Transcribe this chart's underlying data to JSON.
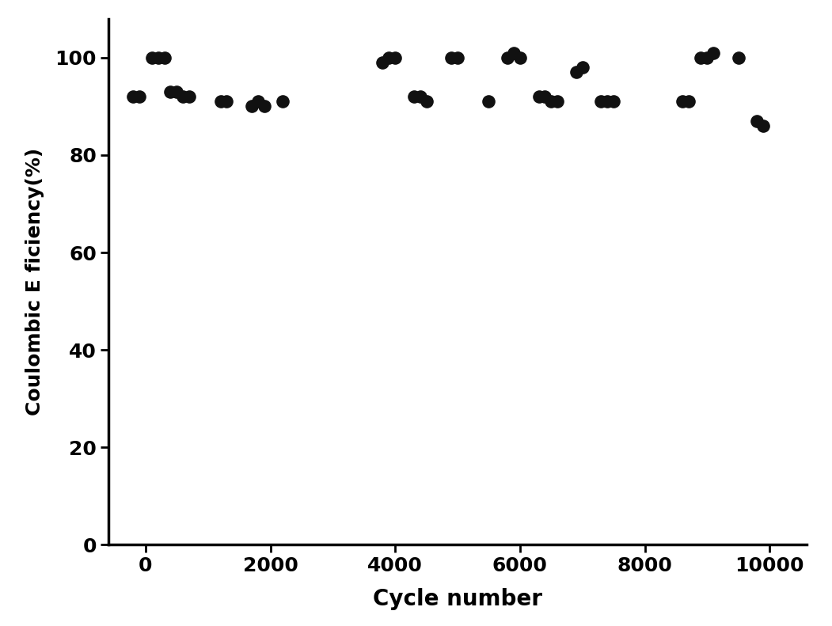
{
  "x": [
    -200,
    -100,
    100,
    200,
    300,
    400,
    500,
    600,
    700,
    1200,
    1300,
    1700,
    1800,
    1900,
    2200,
    3800,
    3900,
    4000,
    4300,
    4400,
    4500,
    4900,
    5000,
    5500,
    5800,
    5900,
    6000,
    6300,
    6400,
    6500,
    6600,
    6900,
    7000,
    7300,
    7400,
    7500,
    8600,
    8700,
    8900,
    9000,
    9100,
    9500,
    9800,
    9900
  ],
  "y": [
    92,
    92,
    100,
    100,
    100,
    93,
    93,
    92,
    92,
    91,
    91,
    90,
    91,
    90,
    91,
    99,
    100,
    100,
    92,
    92,
    91,
    100,
    100,
    91,
    100,
    101,
    100,
    92,
    92,
    91,
    91,
    97,
    98,
    91,
    91,
    91,
    91,
    91,
    100,
    100,
    101,
    100,
    87,
    86
  ],
  "xlabel": "Cycle number",
  "ylabel": "Coulombic E ficiency(%)",
  "xlim": [
    -600,
    10600
  ],
  "ylim": [
    0,
    108
  ],
  "yticks": [
    0,
    20,
    40,
    60,
    80,
    100
  ],
  "xticks": [
    0,
    2000,
    4000,
    6000,
    8000,
    10000
  ],
  "marker_color": "#111111",
  "marker_size": 120,
  "background_color": "#ffffff",
  "xlabel_fontsize": 20,
  "ylabel_fontsize": 18,
  "tick_fontsize": 18,
  "spine_linewidth": 2.5
}
